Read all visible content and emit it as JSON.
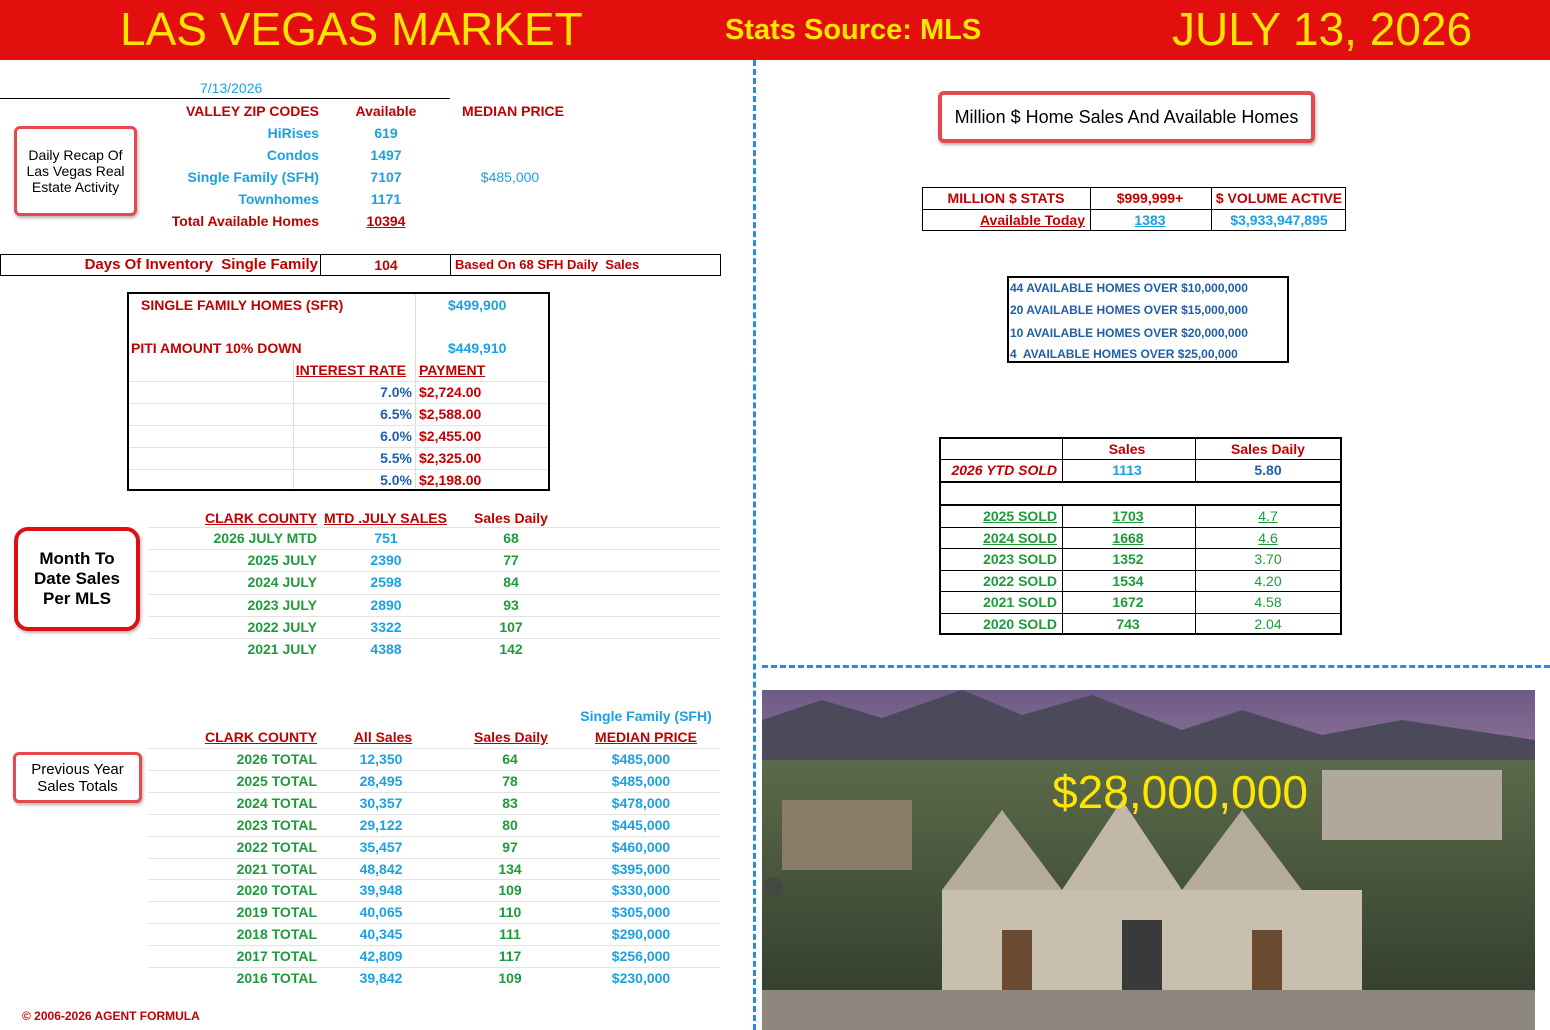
{
  "header": {
    "title": "LAS VEGAS MARKET",
    "source": "Stats Source: MLS",
    "date": "JULY 13, 2026"
  },
  "recap": {
    "date": "7/13/2026",
    "callout": "Daily Recap Of Las Vegas Real Estate Activity",
    "headers": [
      "VALLEY ZIP CODES",
      "Available",
      "MEDIAN PRICE"
    ],
    "rows": [
      {
        "label": "HiRises",
        "available": "619"
      },
      {
        "label": "Condos",
        "available": "1497"
      },
      {
        "label": "Single Family (SFH)",
        "available": "7107",
        "median_price": "$485,000"
      },
      {
        "label": "Townhomes",
        "available": "1171"
      }
    ],
    "total": {
      "label": "Total Available Homes",
      "available": "10394"
    }
  },
  "inventory": {
    "label": "Days Of Inventory  Single Family",
    "days": "104",
    "note": "Based On 68 SFH Daily  Sales"
  },
  "piti": {
    "sfr_label": "SINGLE FAMILY HOMES (SFR)",
    "sfr_price": "$499,900",
    "piti_label": "PITI AMOUNT 10% DOWN",
    "piti_amount": "$449,910",
    "headers": [
      "INTEREST RATE",
      "PAYMENT"
    ],
    "rates": [
      [
        "7.0%",
        "$2,724.00"
      ],
      [
        "6.5%",
        "$2,588.00"
      ],
      [
        "6.0%",
        "$2,455.00"
      ],
      [
        "5.5%",
        "$2,325.00"
      ],
      [
        "5.0%",
        "$2,198.00"
      ]
    ]
  },
  "mtd": {
    "callout": "Month To Date Sales Per MLS",
    "headers": [
      "CLARK COUNTY",
      "MTD .JULY SALES",
      "Sales Daily"
    ],
    "rows": [
      [
        "2026 JULY MTD",
        "751",
        "68"
      ],
      [
        "2025 JULY",
        "2390",
        "77"
      ],
      [
        "2024 JULY",
        "2598",
        "84"
      ],
      [
        "2023 JULY",
        "2890",
        "93"
      ],
      [
        "2022 JULY",
        "3322",
        "107"
      ],
      [
        "2021 JULY",
        "4388",
        "142"
      ]
    ]
  },
  "yearly": {
    "callout": "Previous Year Sales Totals",
    "note": "Single Family (SFH)",
    "headers": [
      "CLARK COUNTY",
      "All Sales",
      "Sales Daily",
      "MEDIAN PRICE"
    ],
    "rows": [
      [
        "2026 TOTAL",
        "12,350",
        "64",
        "$485,000"
      ],
      [
        "2025 TOTAL",
        "28,495",
        "78",
        "$485,000"
      ],
      [
        "2024 TOTAL",
        "30,357",
        "83",
        "$478,000"
      ],
      [
        "2023 TOTAL",
        "29,122",
        "80",
        "$445,000"
      ],
      [
        "2022 TOTAL",
        "35,457",
        "97",
        "$460,000"
      ],
      [
        "2021 TOTAL",
        "48,842",
        "134",
        "$395,000"
      ],
      [
        "2020 TOTAL",
        "39,948",
        "109",
        "$330,000"
      ],
      [
        "2019 TOTAL",
        "40,065",
        "110",
        "$305,000"
      ],
      [
        "2018 TOTAL",
        "40,345",
        "111",
        "$290,000"
      ],
      [
        "2017 TOTAL",
        "42,809",
        "117",
        "$256,000"
      ],
      [
        "2016 TOTAL",
        "39,842",
        "109",
        "$230,000"
      ]
    ]
  },
  "million": {
    "title": "Million $ Home Sales And Available Homes",
    "headers": [
      "MILLION $ STATS",
      "$999,999+",
      "$ VOLUME ACTIVE"
    ],
    "row": [
      "Available Today",
      "1383",
      "$3,933,947,895"
    ],
    "over_list": [
      "44 AVAILABLE HOMES OVER $10,000,000",
      "20 AVAILABLE HOMES OVER $15,000,000",
      "10 AVAILABLE HOMES OVER $20,000,000",
      "4  AVAILABLE HOMES OVER $25,00,000"
    ]
  },
  "ytd": {
    "headers": [
      "Sales",
      "Sales Daily"
    ],
    "ytd": [
      "2026 YTD SOLD",
      "1113",
      "5.80"
    ],
    "rows": [
      [
        "2025 SOLD",
        "1703",
        "4.7"
      ],
      [
        "2024 SOLD",
        "1668",
        "4.6"
      ],
      [
        "2023 SOLD",
        "1352",
        "3.70"
      ],
      [
        "2022 SOLD",
        "1534",
        "4.20"
      ],
      [
        "2021 SOLD",
        "1672",
        "4.58"
      ],
      [
        "2020 SOLD",
        "743",
        "2.04"
      ]
    ]
  },
  "photo": {
    "price": "$28,000,000"
  },
  "footer": "© 2006-2026 AGENT FORMULA"
}
